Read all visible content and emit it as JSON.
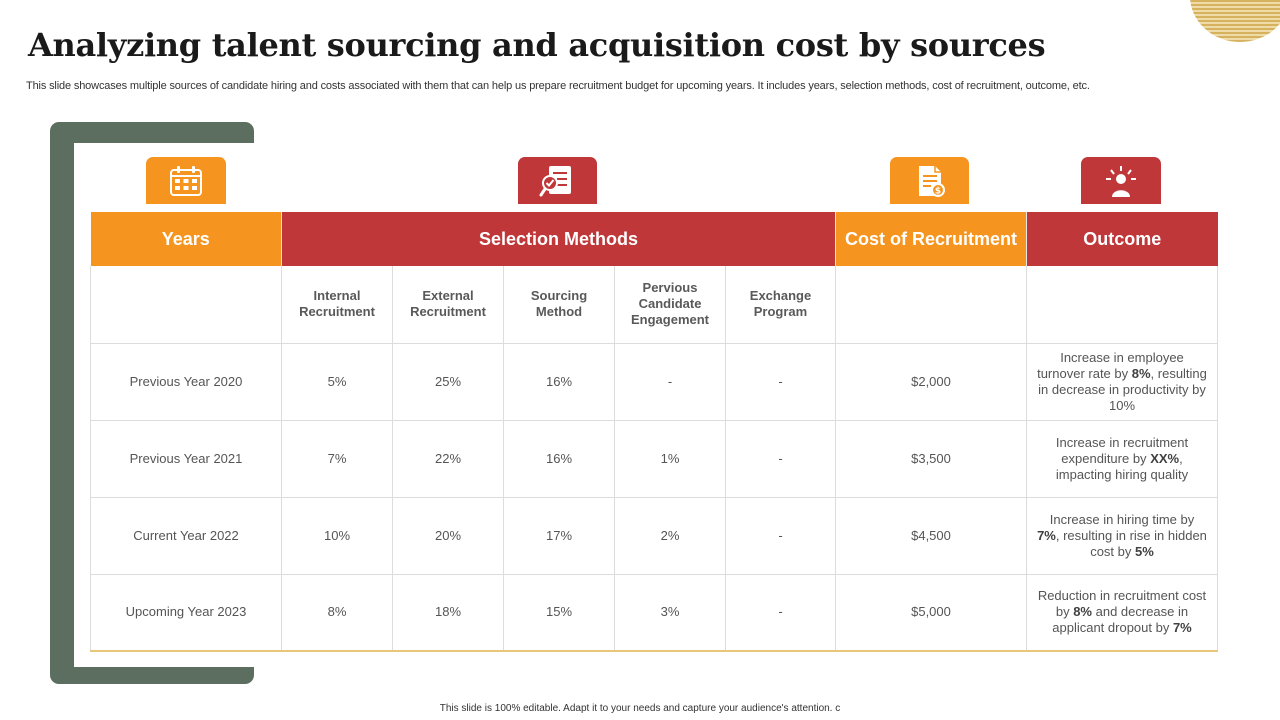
{
  "title": "Analyzing talent sourcing and acquisition cost by sources",
  "subtitle": "This slide showcases multiple sources of candidate hiring and costs associated with them that can help us prepare recruitment budget for upcoming years. It includes years, selection methods, cost of recruitment, outcome, etc.",
  "icons": {
    "years": "calendar-icon",
    "selection": "document-check-icon",
    "cost": "invoice-icon",
    "outcome": "idea-person-icon"
  },
  "colors": {
    "orange": "#f5951f",
    "red": "#c0373a",
    "frame": "#5c6e5f",
    "accent_line": "#e8c77a"
  },
  "table": {
    "headers": {
      "years": "Years",
      "selection_methods": "Selection Methods",
      "cost": "Cost of Recruitment",
      "outcome": "Outcome"
    },
    "subheaders": [
      "Internal Recruitment",
      "External Recruitment",
      "Sourcing Method",
      "Pervious Candidate Engagement",
      "Exchange Program"
    ],
    "rows": [
      {
        "year": "Previous Year 2020",
        "internal": "5%",
        "external": "25%",
        "sourcing": "16%",
        "previous": "-",
        "exchange": "-",
        "cost": "$2,000",
        "outcome": {
          "a": "Increase in employee turnover rate by ",
          "b1": "8%",
          "c": ", resulting in decrease in productivity by 10%",
          "b2": "",
          "d": ""
        }
      },
      {
        "year": "Previous Year 2021",
        "internal": "7%",
        "external": "22%",
        "sourcing": "16%",
        "previous": "1%",
        "exchange": "-",
        "cost": "$3,500",
        "outcome": {
          "a": "Increase in recruitment expenditure by ",
          "b1": "XX%",
          "c": ", impacting hiring quality",
          "b2": "",
          "d": ""
        }
      },
      {
        "year": "Current Year 2022",
        "internal": "10%",
        "external": "20%",
        "sourcing": "17%",
        "previous": "2%",
        "exchange": "-",
        "cost": "$4,500",
        "outcome": {
          "a": "Increase in hiring time by ",
          "b1": "7%",
          "c": ", resulting in rise in hidden cost by ",
          "b2": "5%",
          "d": ""
        }
      },
      {
        "year": "Upcoming Year 2023",
        "internal": "8%",
        "external": "18%",
        "sourcing": "15%",
        "previous": "3%",
        "exchange": "-",
        "cost": "$5,000",
        "outcome": {
          "a": "Reduction in recruitment cost by ",
          "b1": "8%",
          "c": " and decrease in applicant dropout by ",
          "b2": "7%",
          "d": ""
        }
      }
    ]
  },
  "footer": "This slide is 100% editable. Adapt it to your needs and capture your audience's attention. c"
}
